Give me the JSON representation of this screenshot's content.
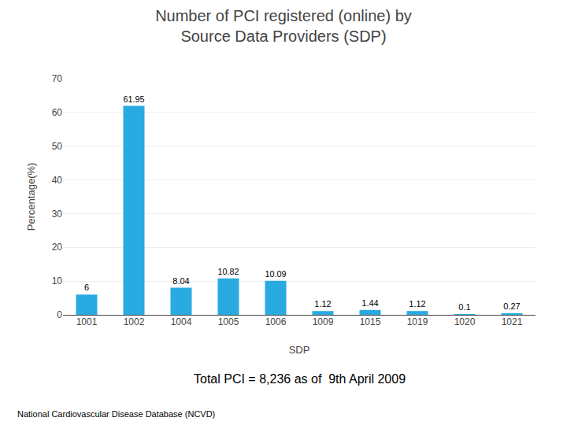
{
  "chart_data": {
    "type": "bar",
    "title": "Number of PCI registered (online) by\nSource Data Providers (SDP)",
    "xlabel": "SDP",
    "ylabel": "Percentage(%)",
    "categories": [
      "1001",
      "1002",
      "1004",
      "1005",
      "1006",
      "1009",
      "1015",
      "1019",
      "1020",
      "1021"
    ],
    "values": [
      6,
      61.95,
      8.04,
      10.82,
      10.09,
      1.12,
      1.44,
      1.12,
      0.1,
      0.27
    ],
    "color": "#29ABE2",
    "ylim": [
      0,
      70
    ],
    "yticks": [
      0,
      10,
      20,
      30,
      40,
      50,
      60,
      70
    ],
    "grid": true,
    "data_labels": true,
    "annotations": [
      "Total PCI = 8,236 as of  9th April 2009",
      "National Cardiovascular Disease Database (NCVD)"
    ]
  }
}
